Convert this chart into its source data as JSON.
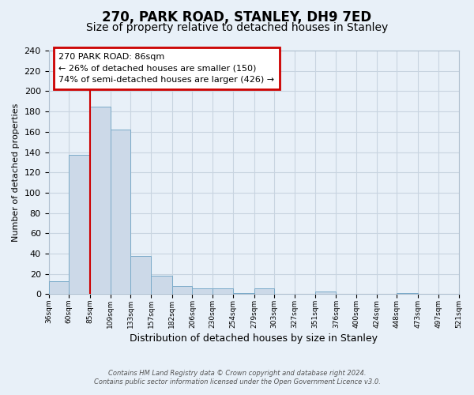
{
  "title": "270, PARK ROAD, STANLEY, DH9 7ED",
  "subtitle": "Size of property relative to detached houses in Stanley",
  "xlabel": "Distribution of detached houses by size in Stanley",
  "ylabel": "Number of detached properties",
  "bar_values": [
    13,
    137,
    185,
    162,
    38,
    18,
    8,
    6,
    6,
    1,
    6,
    0,
    0,
    3,
    0,
    0,
    0,
    1,
    0,
    0
  ],
  "bin_edges": [
    36,
    60,
    85,
    109,
    133,
    157,
    182,
    206,
    230,
    254,
    279,
    303,
    327,
    351,
    376,
    400,
    424,
    448,
    473,
    497,
    521
  ],
  "bin_labels": [
    "36sqm",
    "60sqm",
    "85sqm",
    "109sqm",
    "133sqm",
    "157sqm",
    "182sqm",
    "206sqm",
    "230sqm",
    "254sqm",
    "279sqm",
    "303sqm",
    "327sqm",
    "351sqm",
    "376sqm",
    "400sqm",
    "424sqm",
    "448sqm",
    "473sqm",
    "497sqm",
    "521sqm"
  ],
  "bar_color": "#ccd9e8",
  "bar_edge_color": "#7aaac8",
  "ylim": [
    0,
    240
  ],
  "yticks": [
    0,
    20,
    40,
    60,
    80,
    100,
    120,
    140,
    160,
    180,
    200,
    220,
    240
  ],
  "red_line_x": 85,
  "annotation_title": "270 PARK ROAD: 86sqm",
  "annotation_line1": "← 26% of detached houses are smaller (150)",
  "annotation_line2": "74% of semi-detached houses are larger (426) →",
  "annotation_box_facecolor": "#ffffff",
  "annotation_box_edgecolor": "#cc0000",
  "red_line_color": "#cc0000",
  "grid_color": "#c8d4e0",
  "background_color": "#e8f0f8",
  "title_fontsize": 12,
  "subtitle_fontsize": 10,
  "xlabel_fontsize": 9,
  "ylabel_fontsize": 8,
  "footnote1": "Contains HM Land Registry data © Crown copyright and database right 2024.",
  "footnote2": "Contains public sector information licensed under the Open Government Licence v3.0."
}
